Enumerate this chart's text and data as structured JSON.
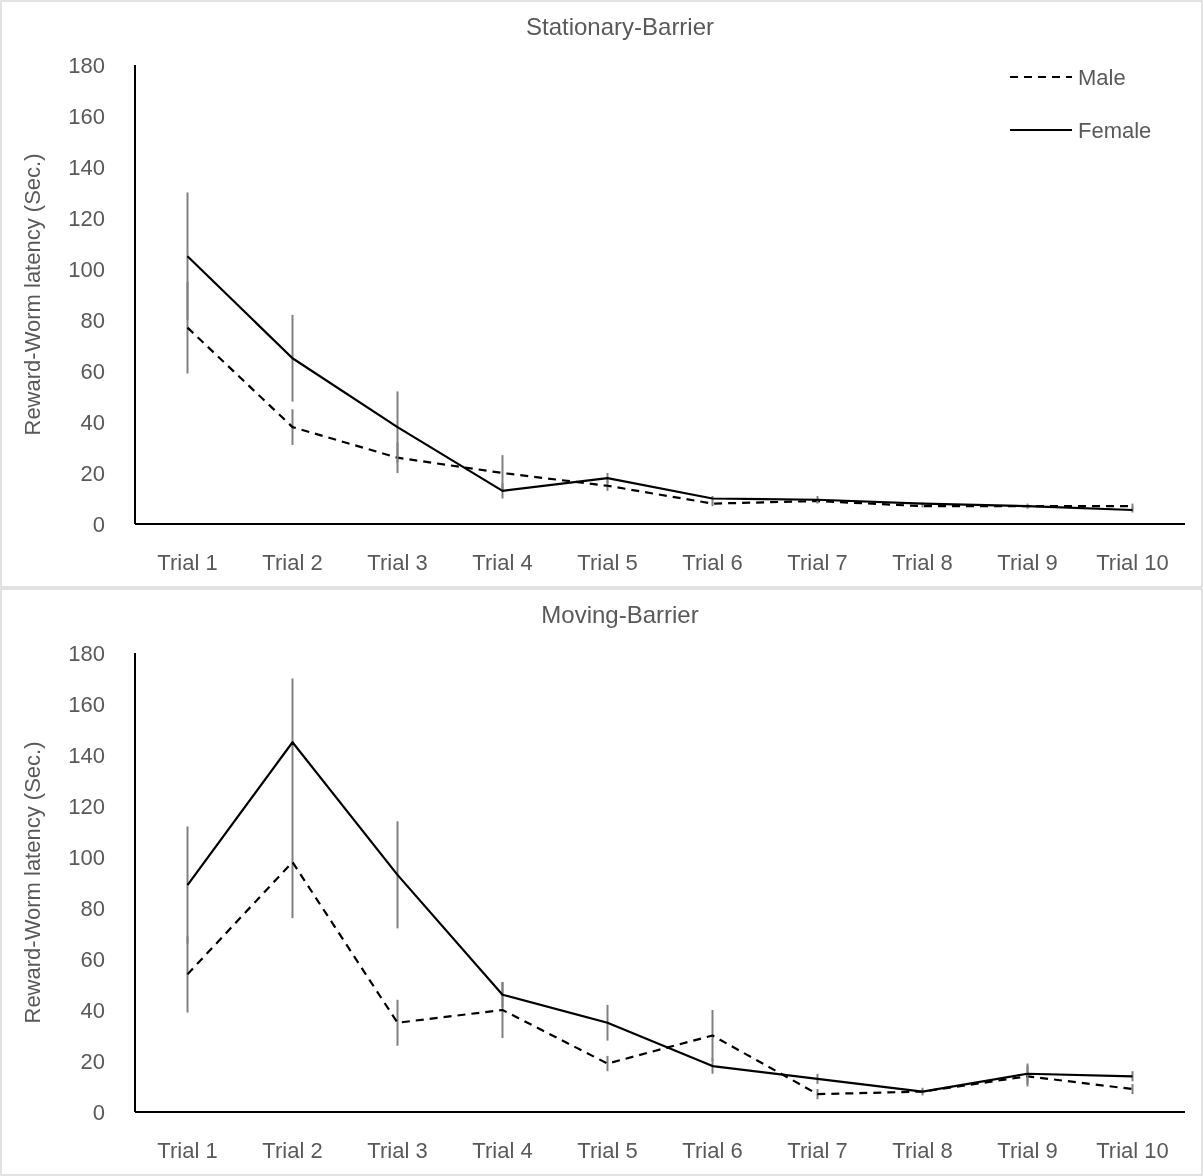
{
  "chart_data": [
    {
      "type": "line",
      "title": "Stationary-Barrier",
      "ylabel": "Reward-Worm latency (Sec.)",
      "categories": [
        "Trial 1",
        "Trial 2",
        "Trial 3",
        "Trial 4",
        "Trial 5",
        "Trial 6",
        "Trial 7",
        "Trial 8",
        "Trial 9",
        "Trial 10"
      ],
      "ylim": [
        0,
        180
      ],
      "yticks": [
        0,
        20,
        40,
        60,
        80,
        100,
        120,
        140,
        160,
        180
      ],
      "grid": false,
      "legend": "top right",
      "marker": "none",
      "series": [
        {
          "name": "Male",
          "color": "#000000",
          "line_style": "dashed",
          "values": [
            77,
            38,
            26,
            20,
            15,
            8,
            9,
            7,
            7,
            7
          ],
          "errors": [
            18,
            7,
            6,
            7,
            2,
            1,
            0.5,
            0.5,
            null,
            1
          ]
        },
        {
          "name": "Female",
          "color": "#000000",
          "line_style": "solid",
          "values": [
            105,
            65,
            38,
            13,
            18,
            10,
            9.5,
            8,
            7,
            5.5
          ],
          "errors": [
            25,
            17,
            14,
            3,
            2,
            1,
            1.5,
            0.5,
            1,
            1
          ]
        }
      ]
    },
    {
      "type": "line",
      "title": "Moving-Barrier",
      "ylabel": "Reward-Worm latency (Sec.)",
      "categories": [
        "Trial 1",
        "Trial 2",
        "Trial 3",
        "Trial 4",
        "Trial 5",
        "Trial 6",
        "Trial 7",
        "Trial 8",
        "Trial 9",
        "Trial 10"
      ],
      "ylim": [
        0,
        180
      ],
      "yticks": [
        0,
        20,
        40,
        60,
        80,
        100,
        120,
        140,
        160,
        180
      ],
      "grid": false,
      "legend": false,
      "marker": "none",
      "series": [
        {
          "color": "#000000",
          "line_style": "dashed",
          "values": [
            54,
            98,
            35,
            40,
            19,
            30,
            7,
            8,
            14,
            9
          ],
          "errors": [
            15,
            22,
            9,
            11,
            3,
            10,
            2,
            0.5,
            4,
            2
          ]
        },
        {
          "color": "#000000",
          "line_style": "solid",
          "values": [
            89,
            145,
            93,
            46,
            35,
            18,
            13,
            8,
            15,
            14
          ],
          "errors": [
            23,
            25,
            21,
            5,
            7,
            3,
            2,
            1.5,
            4,
            2
          ]
        }
      ]
    }
  ]
}
